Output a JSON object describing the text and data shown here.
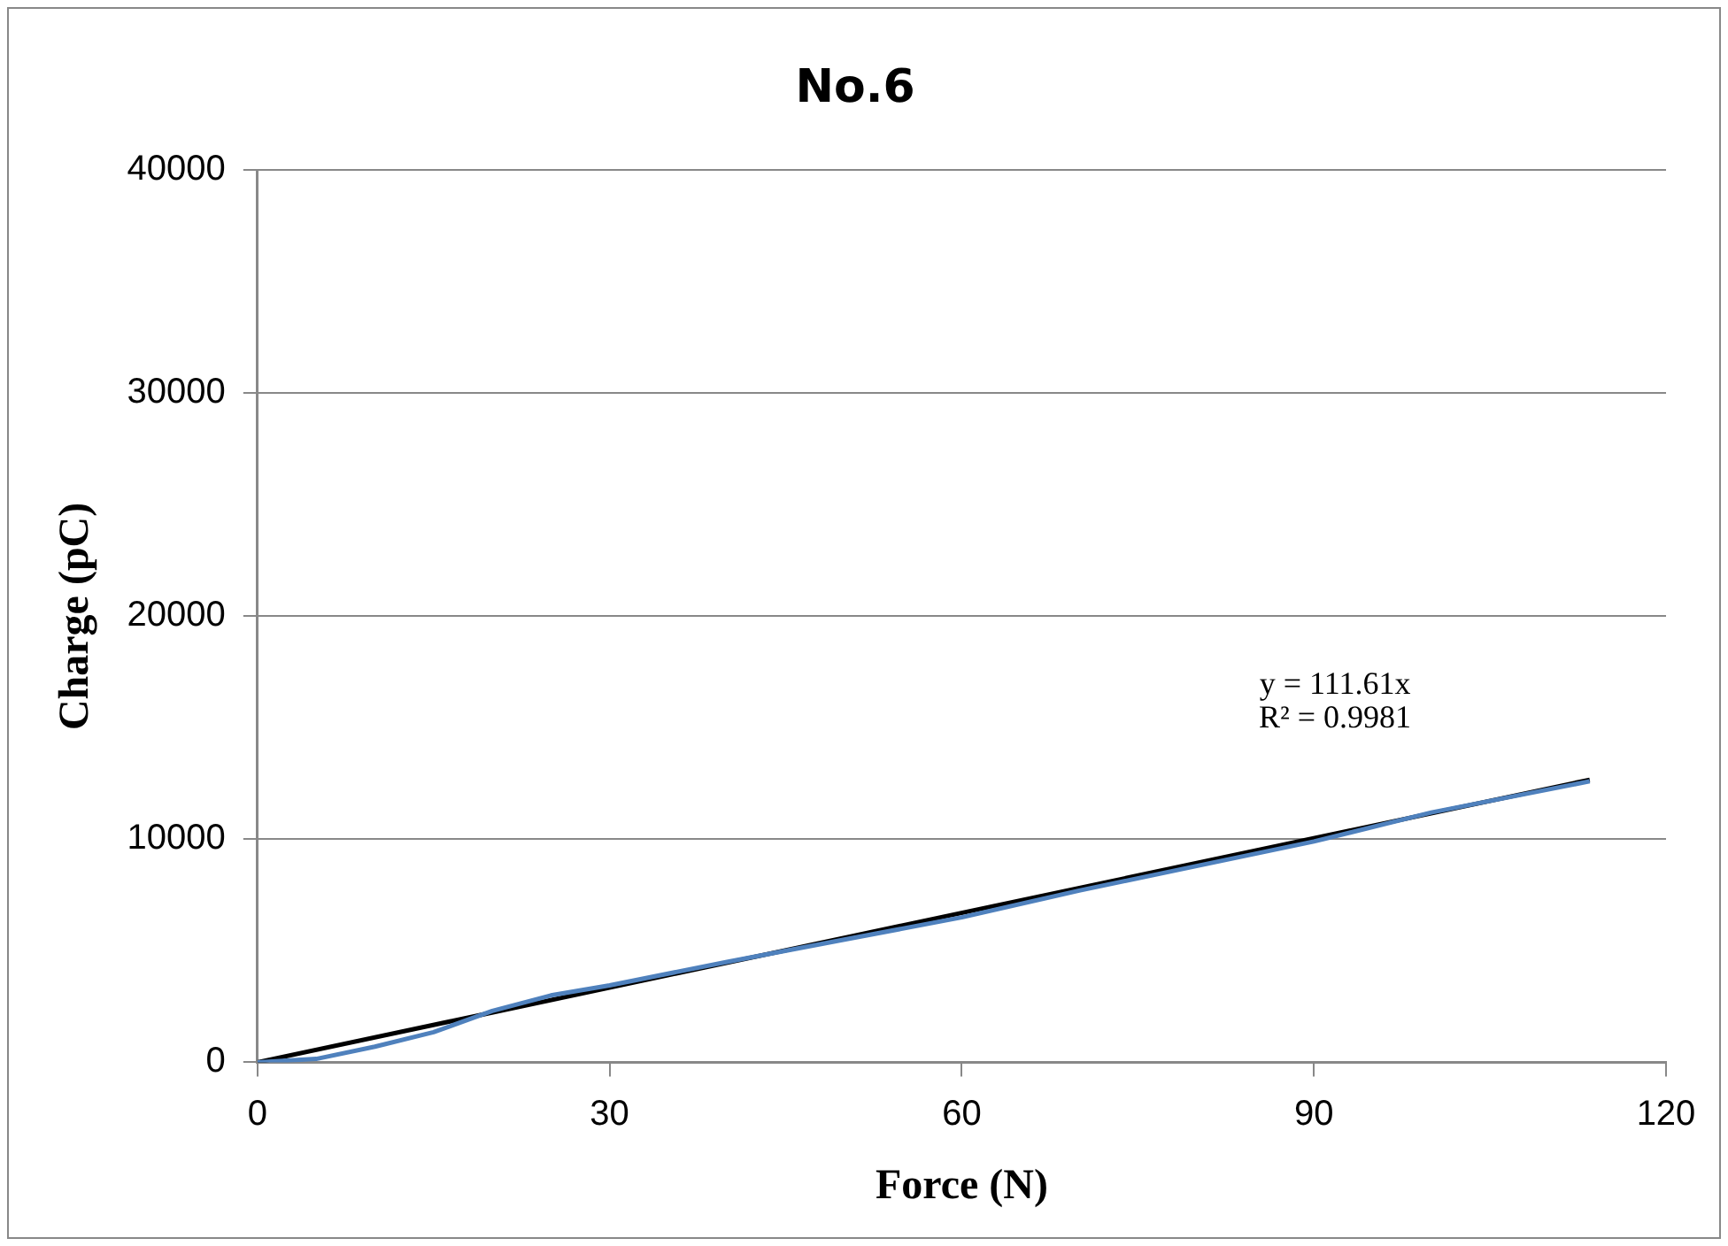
{
  "chart_data": {
    "type": "line",
    "title": "No.6",
    "xlabel": "Force (N)",
    "ylabel": "Charge (pC)",
    "xlim": [
      0,
      120
    ],
    "xticks": [
      0,
      30,
      60,
      90,
      120
    ],
    "ylim": [
      0,
      40000
    ],
    "yticks": [
      0,
      10000,
      20000,
      30000,
      40000
    ],
    "grid": "y",
    "marker": "none",
    "series": [
      {
        "color": "#4f81bd",
        "x": [
          0,
          5,
          10,
          15,
          20,
          25,
          30,
          40,
          50,
          60,
          70,
          80,
          90,
          100,
          113.5
        ],
        "values": [
          0,
          150,
          700,
          1350,
          2300,
          3000,
          3450,
          4500,
          5500,
          6500,
          7700,
          8800,
          9900,
          11200,
          12600
        ]
      },
      {
        "type": "line",
        "color": "#000000",
        "x": [
          0,
          113.5
        ],
        "values": [
          0,
          12670
        ]
      }
    ],
    "annotations": [
      "y = 111.61x",
      "R² = 0.9981"
    ]
  }
}
